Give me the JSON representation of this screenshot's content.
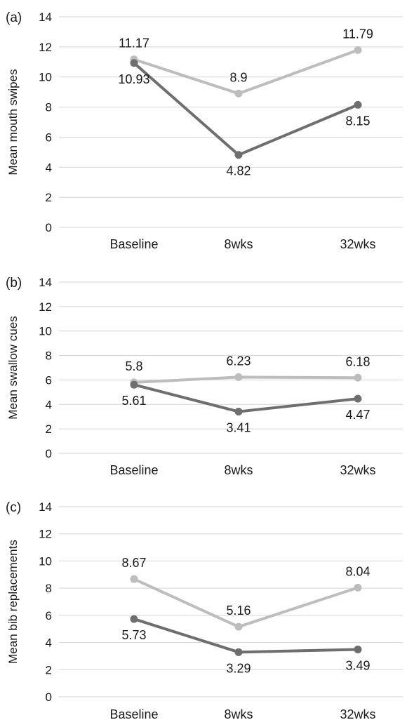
{
  "chart_data": [
    {
      "type": "line",
      "panel_label": "(a)",
      "ylabel": "Mean mouth swipes",
      "ylim": [
        0,
        14
      ],
      "yticks": [
        0,
        2,
        4,
        6,
        8,
        10,
        12,
        14
      ],
      "grid": true,
      "categories": [
        "Baseline",
        "8wks",
        "32wks"
      ],
      "series": [
        {
          "values": [
            11.17,
            8.9,
            11.79
          ],
          "labels": [
            "11.17",
            "8.9",
            "11.79"
          ],
          "color": "#bdbdbd",
          "label_pos": [
            "above",
            "above",
            "above"
          ]
        },
        {
          "values": [
            10.93,
            4.82,
            8.15
          ],
          "labels": [
            "10.93",
            "4.82",
            "8.15"
          ],
          "color": "#6e6e6e",
          "label_pos": [
            "below",
            "below",
            "below"
          ]
        }
      ]
    },
    {
      "type": "line",
      "panel_label": "(b)",
      "ylabel": "Mean swallow cues",
      "ylim": [
        0,
        14
      ],
      "yticks": [
        0,
        2,
        4,
        6,
        8,
        10,
        12,
        14
      ],
      "grid": true,
      "categories": [
        "Baseline",
        "8wks",
        "32wks"
      ],
      "series": [
        {
          "values": [
            5.8,
            6.23,
            6.18
          ],
          "labels": [
            "5.8",
            "6.23",
            "6.18"
          ],
          "color": "#bdbdbd",
          "label_pos": [
            "above",
            "above",
            "above"
          ]
        },
        {
          "values": [
            5.61,
            3.41,
            4.47
          ],
          "labels": [
            "5.61",
            "3.41",
            "4.47"
          ],
          "color": "#6e6e6e",
          "label_pos": [
            "below",
            "below",
            "below"
          ]
        }
      ]
    },
    {
      "type": "line",
      "panel_label": "(c)",
      "ylabel": "Mean bib replacements",
      "ylim": [
        0,
        14
      ],
      "yticks": [
        0,
        2,
        4,
        6,
        8,
        10,
        12,
        14
      ],
      "grid": true,
      "categories": [
        "Baseline",
        "8wks",
        "32wks"
      ],
      "series": [
        {
          "values": [
            8.67,
            5.16,
            8.04
          ],
          "labels": [
            "8.67",
            "5.16",
            "8.04"
          ],
          "color": "#bdbdbd",
          "label_pos": [
            "above",
            "above",
            "above"
          ]
        },
        {
          "values": [
            5.73,
            3.29,
            3.49
          ],
          "labels": [
            "5.73",
            "3.29",
            "3.49"
          ],
          "color": "#6e6e6e",
          "label_pos": [
            "below",
            "below",
            "below"
          ]
        }
      ]
    }
  ]
}
